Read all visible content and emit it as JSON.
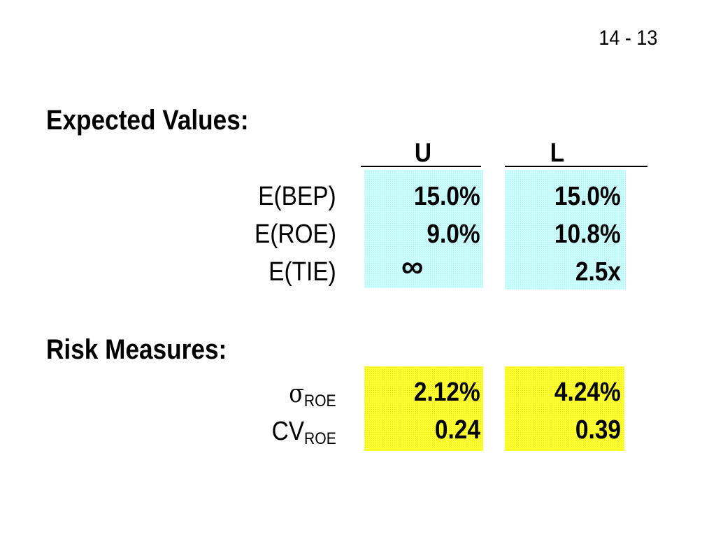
{
  "slide": {
    "page_number": "14 - 13",
    "section_expected": "Expected Values:",
    "section_risk": "Risk Measures:",
    "columns": {
      "u": "U",
      "l": "L"
    },
    "expected_rows": [
      {
        "label": "E(BEP)",
        "u": "15.0%",
        "l": "15.0%"
      },
      {
        "label": "E(ROE)",
        "u": "9.0%",
        "l": "10.8%"
      },
      {
        "label": "E(TIE)",
        "u": "∞",
        "l": "2.5x"
      }
    ],
    "risk_rows": [
      {
        "label_main": "σ",
        "label_sub": "ROE",
        "u": "2.12%",
        "l": "4.24%"
      },
      {
        "label_main": "CV",
        "label_sub": "ROE",
        "u": "0.24",
        "l": "0.39"
      }
    ],
    "colors": {
      "expected_box": "#ccffff",
      "risk_box": "#ffff33"
    }
  }
}
